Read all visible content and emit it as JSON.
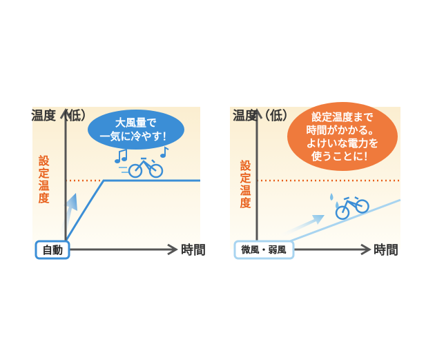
{
  "left": {
    "y_axis": "温度（低）",
    "bubble": [
      "大風量で",
      "一気に冷やす！"
    ],
    "target_label": "設定温度",
    "badge": "自動",
    "x_axis": "時間"
  },
  "right": {
    "y_axis": "温度（低）",
    "bubble": [
      "設定温度まで",
      "時間がかかる。",
      "よけいな電力を",
      "使うことに！"
    ],
    "target_label": "設定温度",
    "badge": "微風・弱風",
    "x_axis": "時間"
  }
}
